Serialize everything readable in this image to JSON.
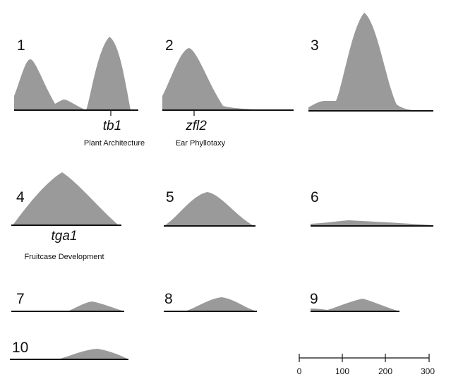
{
  "panels": [
    {
      "number": "1",
      "fill": "#9a9a9a",
      "gene": "tb1",
      "trait": "Plant Architecture"
    },
    {
      "number": "2",
      "fill": "#9a9a9a",
      "gene": "zfl2",
      "trait": "Ear Phyllotaxy"
    },
    {
      "number": "3",
      "fill": "#9a9a9a"
    },
    {
      "number": "4",
      "fill": "#9a9a9a",
      "gene": "tga1",
      "trait": "Fruitcase Development"
    },
    {
      "number": "5",
      "fill": "#9a9a9a"
    },
    {
      "number": "6",
      "fill": "#9a9a9a"
    },
    {
      "number": "7",
      "fill": "#9a9a9a"
    },
    {
      "number": "8",
      "fill": "#9a9a9a"
    },
    {
      "number": "9",
      "fill": "#9a9a9a"
    },
    {
      "number": "10",
      "fill": "#9a9a9a"
    }
  ],
  "scale_bar": {
    "ticks": [
      "0",
      "100",
      "200",
      "300"
    ]
  }
}
